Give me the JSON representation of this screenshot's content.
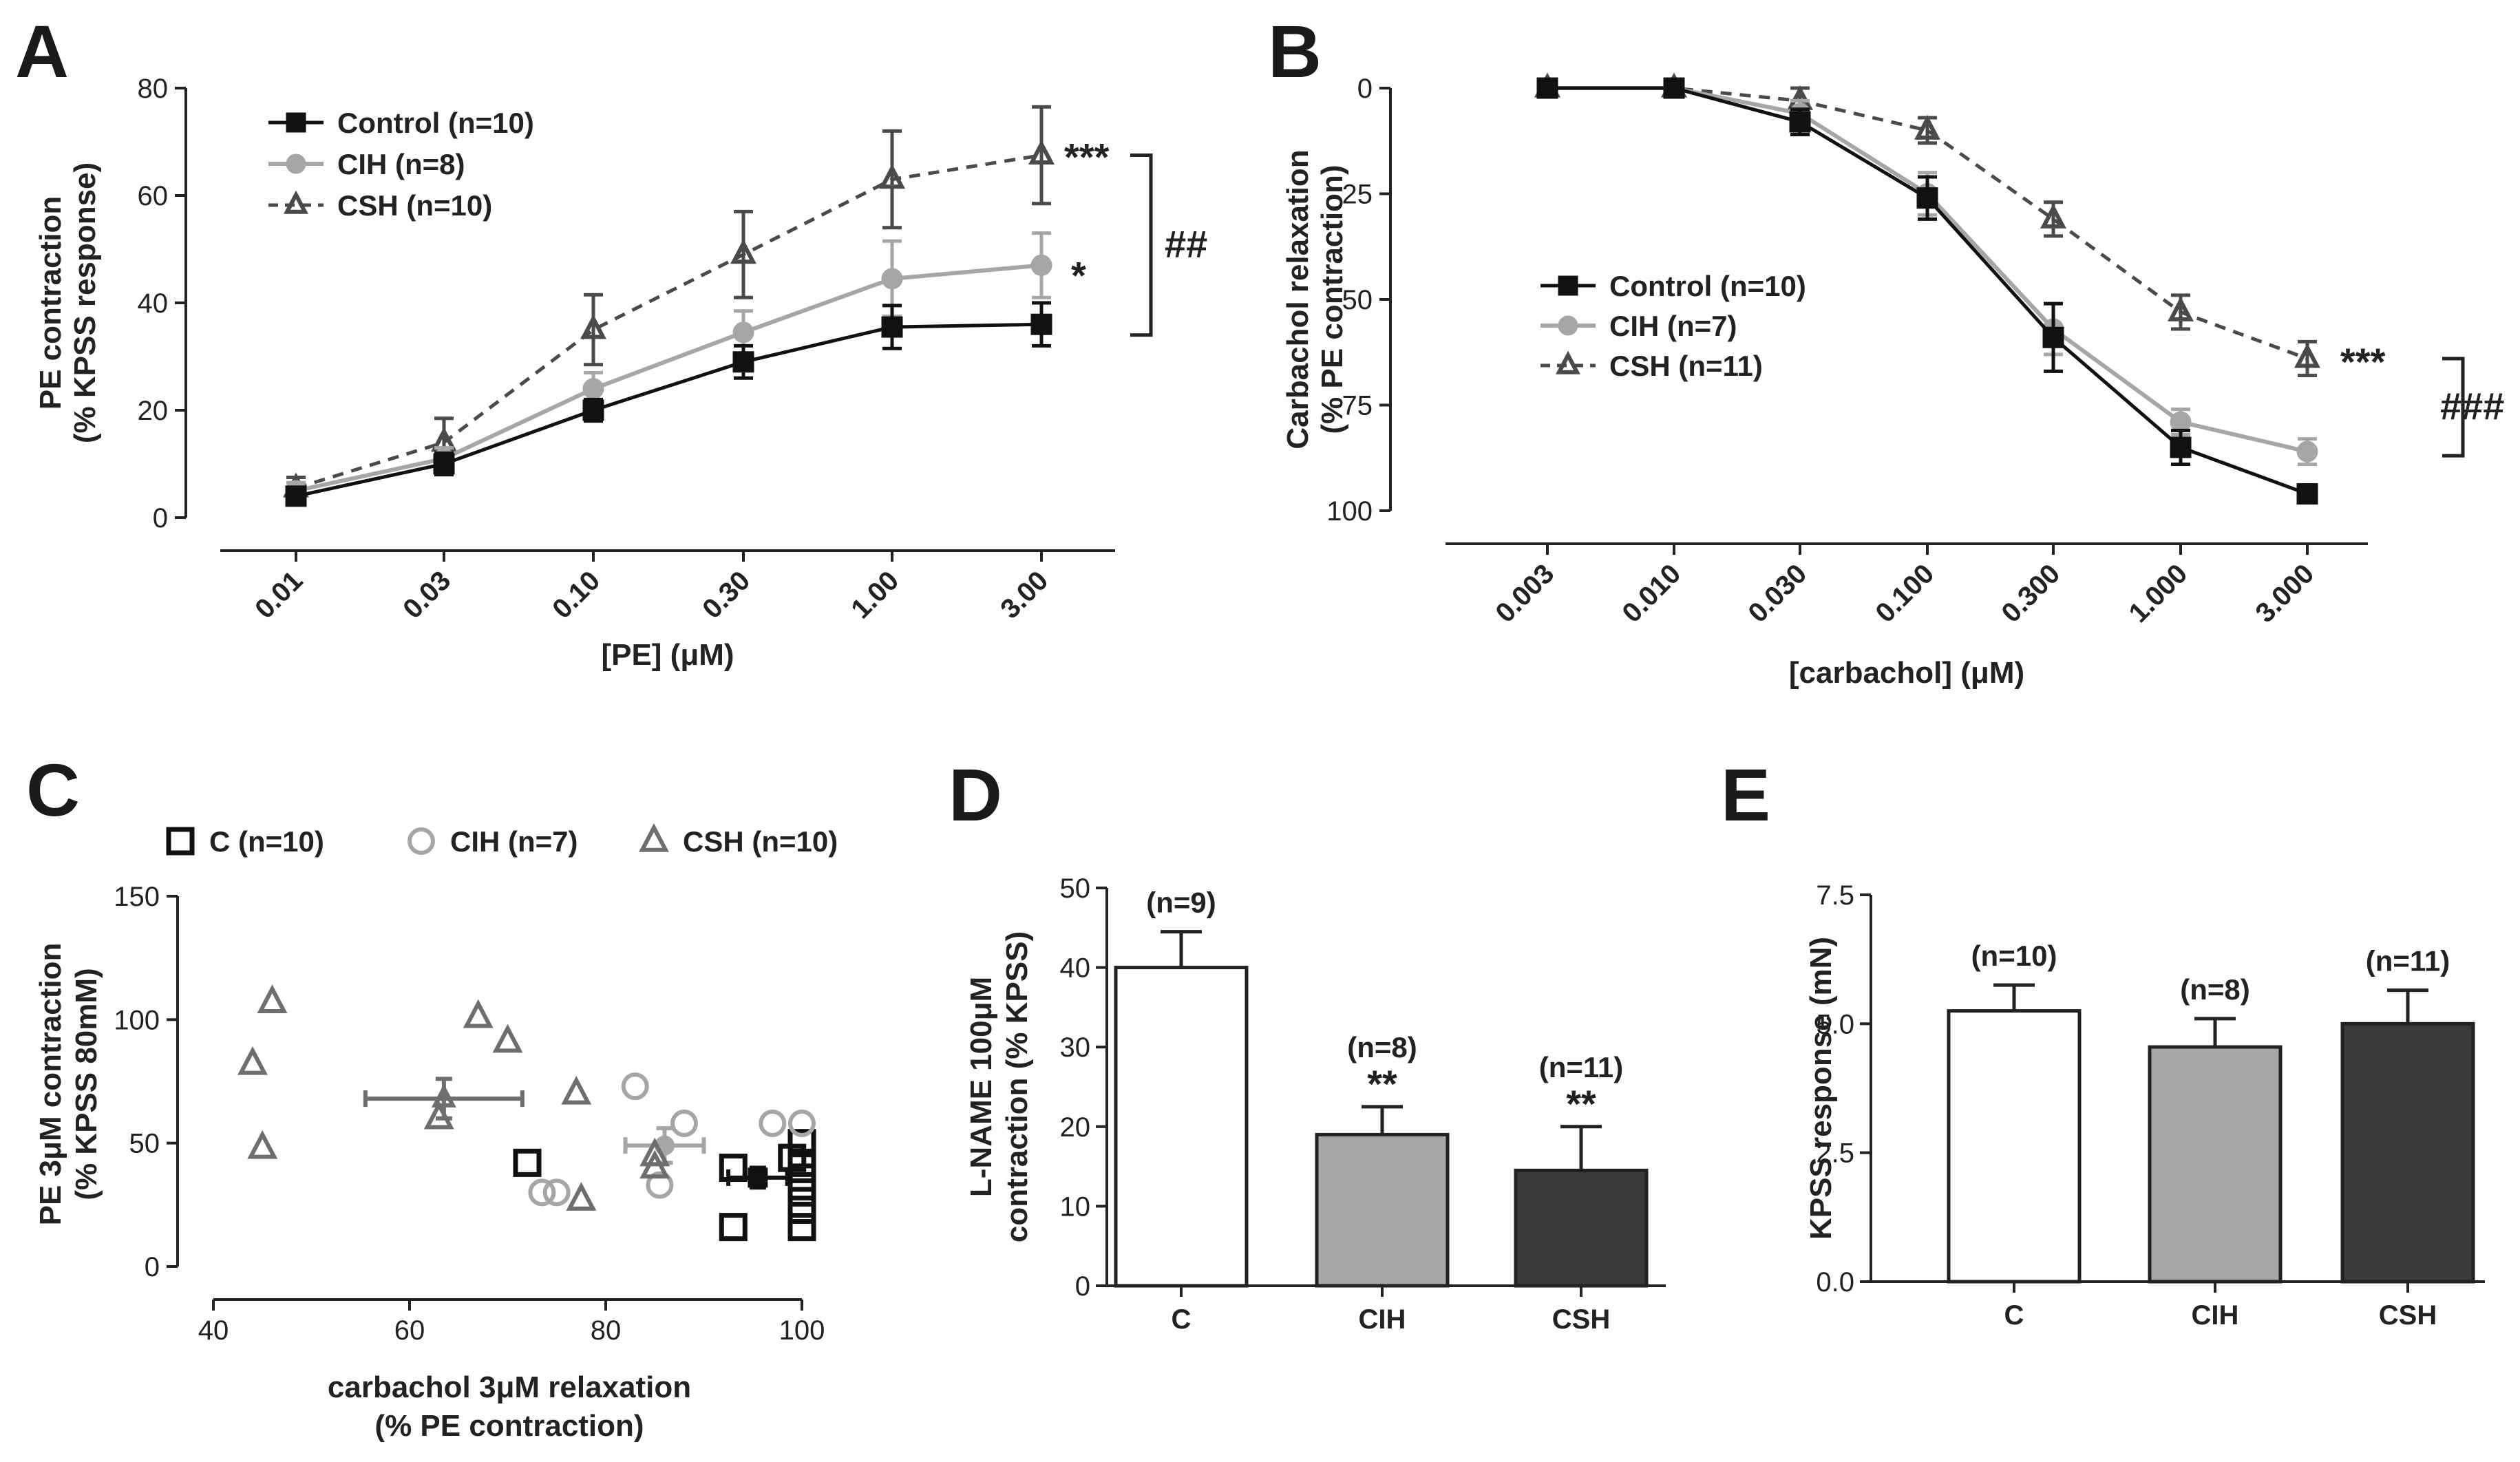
{
  "panels": {
    "A": {
      "label": "A"
    },
    "B": {
      "label": "B"
    },
    "C": {
      "label": "C"
    },
    "D": {
      "label": "D"
    },
    "E": {
      "label": "E"
    }
  },
  "chart_data": [
    {
      "panel": "A",
      "type": "line",
      "xlabel": "[PE] (μM)",
      "ylabel": "PE contraction",
      "ylabel2": "(% KPSS response)",
      "categories": [
        "0.01",
        "0.03",
        "0.10",
        "0.30",
        "1.00",
        "3.00"
      ],
      "ylim": [
        0,
        80
      ],
      "yticks": [
        0,
        20,
        40,
        60,
        80
      ],
      "series": [
        {
          "name": "Control (n=10)",
          "values": [
            4,
            10,
            20,
            29,
            35.5,
            36
          ],
          "err": [
            1.5,
            2,
            2,
            3,
            4,
            4
          ]
        },
        {
          "name": "CIH (n=8)",
          "values": [
            5,
            11,
            24,
            34.5,
            44.5,
            47
          ],
          "err": [
            1.5,
            2,
            3,
            4,
            7,
            6
          ]
        },
        {
          "name": "CSH (n=10)",
          "values": [
            5.5,
            14,
            35,
            49,
            63,
            67.5
          ],
          "err": [
            2,
            4.5,
            6.5,
            8,
            9,
            9
          ]
        }
      ],
      "annotations": {
        "csh_sig": "***",
        "cih_sig": "*",
        "bracket": "##"
      }
    },
    {
      "panel": "B",
      "type": "line",
      "xlabel": "[carbachol] (μM)",
      "ylabel": "Carbachol relaxation",
      "ylabel2": "(% PE contraction)",
      "categories": [
        "0.003",
        "0.010",
        "0.030",
        "0.100",
        "0.300",
        "1.000",
        "3.000"
      ],
      "ylim": [
        0,
        100
      ],
      "y_inverted": true,
      "yticks": [
        0,
        25,
        50,
        75,
        100
      ],
      "series": [
        {
          "name": "Control (n=10)",
          "values": [
            0,
            0,
            8,
            26,
            59,
            85,
            96
          ],
          "err": [
            2,
            2,
            3,
            5,
            8,
            4,
            2
          ]
        },
        {
          "name": "CIH (n=7)",
          "values": [
            0,
            0,
            6,
            25,
            57,
            79,
            86
          ],
          "err": [
            2,
            2,
            3,
            5,
            6,
            3,
            3
          ]
        },
        {
          "name": "CSH (n=11)",
          "values": [
            0,
            0,
            3,
            10,
            31,
            53,
            64
          ],
          "err": [
            2,
            2,
            3,
            3,
            4,
            4,
            4
          ]
        }
      ],
      "annotations": {
        "csh_sig": "***",
        "bracket": "###"
      }
    },
    {
      "panel": "C",
      "type": "scatter",
      "xlabel": "carbachol 3μM relaxation",
      "xlabel2": "(% PE contraction)",
      "ylabel": "PE 3μM contraction",
      "ylabel2": "(% KPSS 80mM)",
      "xlim": [
        40,
        100
      ],
      "ylim": [
        0,
        150
      ],
      "xticks": [
        40,
        60,
        80,
        100
      ],
      "yticks": [
        0,
        50,
        100,
        150
      ],
      "series": [
        {
          "name": "C (n=10)",
          "points": [
            [
              72,
              42
            ],
            [
              93,
              16
            ],
            [
              93,
              40
            ],
            [
              100,
              50
            ],
            [
              100,
              42
            ],
            [
              100,
              36
            ],
            [
              100,
              30
            ],
            [
              100,
              23
            ],
            [
              100,
              16
            ],
            [
              99,
              44
            ]
          ],
          "mean": [
            95.5,
            36
          ],
          "xerr": 3,
          "yerr": 4
        },
        {
          "name": "CIH (n=7)",
          "points": [
            [
              73.5,
              30
            ],
            [
              75,
              30
            ],
            [
              83,
              73
            ],
            [
              85.5,
              33
            ],
            [
              88,
              58
            ],
            [
              97,
              58
            ],
            [
              100,
              58
            ]
          ],
          "mean": [
            86,
            49
          ],
          "xerr": 4,
          "yerr": 7
        },
        {
          "name": "CSH (n=10)",
          "points": [
            [
              44,
              82
            ],
            [
              45,
              48
            ],
            [
              46,
              107
            ],
            [
              63,
              60
            ],
            [
              67,
              101
            ],
            [
              70,
              91
            ],
            [
              77,
              70
            ],
            [
              77.5,
              27
            ],
            [
              85,
              40
            ],
            [
              85,
              45
            ]
          ],
          "mean": [
            63.5,
            68
          ],
          "xerr": 8,
          "yerr": 8
        }
      ]
    },
    {
      "panel": "D",
      "type": "bar",
      "ylabel": "L-NAME 100μM",
      "ylabel2": "contraction (% KPSS)",
      "categories": [
        "C",
        "CIH",
        "CSH"
      ],
      "values": [
        40,
        19,
        14.5
      ],
      "err": [
        4.5,
        3.5,
        5.5
      ],
      "n_labels": [
        "(n=9)",
        "(n=8)",
        "(n=11)"
      ],
      "sig": [
        "",
        "**",
        "**"
      ],
      "colors": [
        "#ffffff",
        "#a6a6a6",
        "#3a3a3a"
      ],
      "ylim": [
        0,
        50
      ],
      "yticks": [
        0,
        10,
        20,
        30,
        40,
        50
      ]
    },
    {
      "panel": "E",
      "type": "bar",
      "ylabel": "KPSS response (mN)",
      "categories": [
        "C",
        "CIH",
        "CSH"
      ],
      "values": [
        5.25,
        4.55,
        5.0
      ],
      "err": [
        0.5,
        0.55,
        0.65
      ],
      "n_labels": [
        "(n=10)",
        "(n=8)",
        "(n=11)"
      ],
      "colors": [
        "#ffffff",
        "#a6a6a6",
        "#3a3a3a"
      ],
      "ylim": [
        0,
        7.5
      ],
      "yticks": [
        "0.0",
        "2.5",
        "5.0",
        "7.5"
      ]
    }
  ],
  "colors": {
    "control": "#111111",
    "cih": "#a6a6a6",
    "csh": "#555555"
  }
}
